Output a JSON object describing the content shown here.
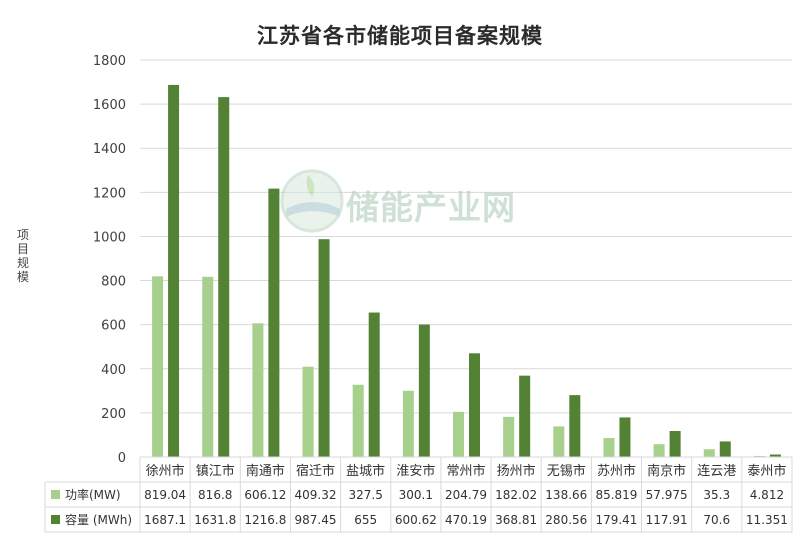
{
  "watermark": {
    "text": "储能产业网"
  },
  "colors": {
    "series1": "#a8d08d",
    "series2": "#548235",
    "grid": "#d9d9d9"
  },
  "chart_data": {
    "type": "bar",
    "title": "江苏省各市储能项目备案规模",
    "ylabel": "项目规模",
    "ylim": [
      0,
      1800
    ],
    "yticks": [
      0,
      200,
      400,
      600,
      800,
      1000,
      1200,
      1400,
      1600,
      1800
    ],
    "grid": true,
    "legend": "data-table-below",
    "categories": [
      "徐州市",
      "镇江市",
      "南通市",
      "宿迁市",
      "盐城市",
      "淮安市",
      "常州市",
      "扬州市",
      "无锡市",
      "苏州市",
      "南京市",
      "连云港",
      "泰州市"
    ],
    "series": [
      {
        "name": "功率(MW)",
        "values": [
          819.04,
          816.8,
          606.12,
          409.32,
          327.5,
          300.1,
          204.79,
          182.02,
          138.66,
          85.819,
          57.975,
          35.3,
          4.812
        ],
        "labels": [
          "819.04",
          "816.8",
          "606.12",
          "409.32",
          "327.5",
          "300.1",
          "204.79",
          "182.02",
          "138.66",
          "85.819",
          "57.975",
          "35.3",
          "4.812"
        ]
      },
      {
        "name": "容量 (MWh)",
        "values": [
          1687.1,
          1631.8,
          1216.8,
          987.45,
          655,
          600.62,
          470.19,
          368.81,
          280.56,
          179.41,
          117.91,
          70.6,
          11.351
        ],
        "labels": [
          "1687.1",
          "1631.8",
          "1216.8",
          "987.45",
          "655",
          "600.62",
          "470.19",
          "368.81",
          "280.56",
          "179.41",
          "117.91",
          "70.6",
          "11.351"
        ]
      }
    ]
  }
}
